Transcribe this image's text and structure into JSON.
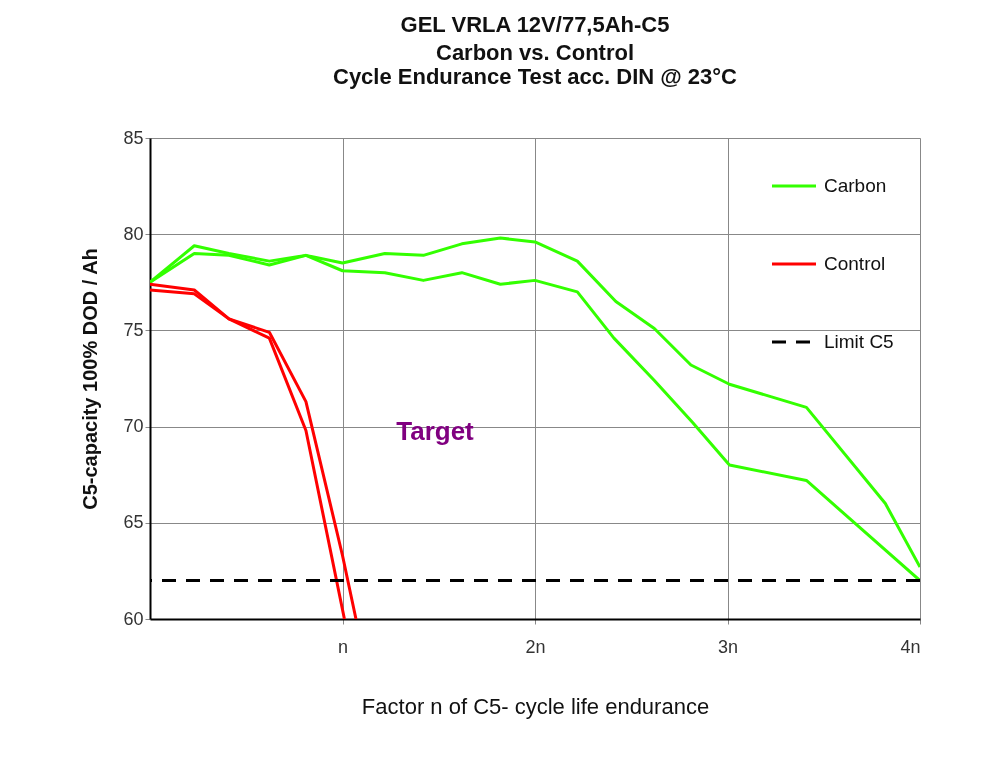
{
  "chart_data": {
    "type": "line",
    "title": "GEL VRLA  12V/77,5Ah-C5",
    "subtitle": "Carbon vs. Control\nCycle Endurance Test acc. DIN @ 23°C",
    "xlabel": "Factor n of C5- cycle life endurance",
    "ylabel": "C5-capacity 100% DOD / Ah",
    "xlim": [
      0,
      4
    ],
    "xticks": [
      {
        "value": 1,
        "label": "n"
      },
      {
        "value": 2,
        "label": "2n"
      },
      {
        "value": 3,
        "label": "3n"
      },
      {
        "value": 4,
        "label": "4n"
      }
    ],
    "ylim": [
      60,
      85
    ],
    "yticks": [
      60,
      65,
      70,
      75,
      80,
      85
    ],
    "grid": true,
    "legend": "top right",
    "line_style": "solid",
    "marker": "none",
    "series": [
      {
        "name": "Carbon",
        "color": "#33ff00",
        "x": [
          0,
          0.23,
          0.41,
          0.62,
          0.81,
          1.0,
          1.22,
          1.42,
          1.62,
          1.82,
          2.0,
          2.22,
          2.42,
          2.62,
          2.81,
          3.01,
          3.41,
          3.82,
          4.0
        ],
        "values": [
          77.5,
          79.0,
          78.9,
          78.4,
          78.9,
          78.5,
          79.0,
          78.9,
          79.5,
          79.8,
          79.6,
          78.6,
          76.5,
          75.1,
          73.2,
          72.2,
          71.0,
          66.0,
          62.7
        ]
      },
      {
        "color": "#33ff00",
        "x": [
          0,
          0.23,
          0.41,
          0.62,
          0.81,
          1.0,
          1.22,
          1.42,
          1.62,
          1.82,
          2.0,
          2.22,
          2.41,
          2.62,
          2.82,
          3.01,
          3.41,
          4.0
        ],
        "values": [
          77.5,
          79.4,
          79.0,
          78.6,
          78.9,
          78.1,
          78.0,
          77.6,
          78.0,
          77.4,
          77.6,
          77.0,
          74.6,
          72.4,
          70.2,
          68.0,
          67.2,
          62.0
        ]
      },
      {
        "name": "Control",
        "color": "#ff0000",
        "x": [
          0,
          0.23,
          0.41,
          0.62,
          0.81,
          1.0,
          1.07
        ],
        "values": [
          77.4,
          77.1,
          75.6,
          74.9,
          71.3,
          63.3,
          60.0
        ]
      },
      {
        "color": "#ff0000",
        "x": [
          0,
          0.23,
          0.41,
          0.62,
          0.81,
          1.01
        ],
        "values": [
          77.1,
          76.9,
          75.6,
          74.6,
          69.8,
          60.0
        ]
      }
    ],
    "ref_lines": [
      {
        "axis": "y",
        "value": 62,
        "label": "Limit C5",
        "color": "#000000",
        "line_style": "dashed"
      }
    ],
    "annotations": [
      "Target"
    ]
  }
}
